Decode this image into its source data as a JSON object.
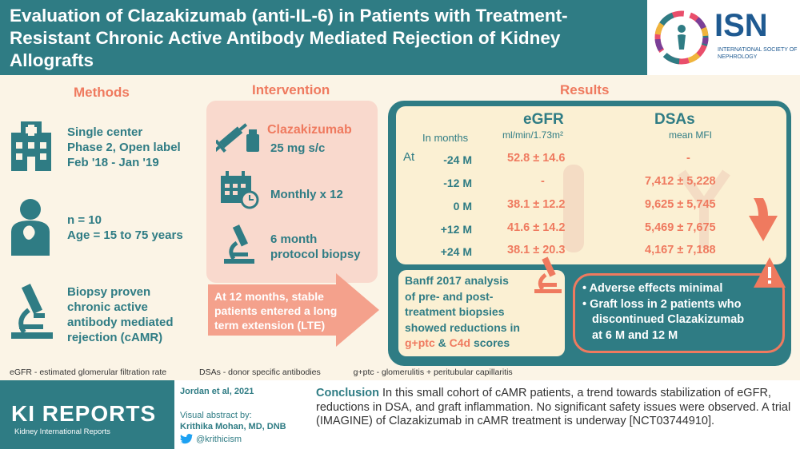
{
  "title": "Evaluation of Clazakizumab (anti-IL-6) in Patients with Treatment-Resistant Chronic Active Antibody Mediated Rejection of Kidney Allografts",
  "isn": {
    "name": "ISN",
    "sub": "INTERNATIONAL SOCIETY OF NEPHROLOGY"
  },
  "methods": {
    "title": "Methods",
    "items": [
      {
        "icon": "hospital-icon",
        "lines": [
          "Single center",
          "Phase 2, Open label",
          "Feb '18 - Jan '19"
        ]
      },
      {
        "icon": "patient-icon",
        "lines": [
          "n = 10",
          "Age = 15 to 75 years"
        ]
      },
      {
        "icon": "microscope-icon",
        "lines": [
          "Biopsy proven",
          "chronic active",
          "antibody mediated",
          "rejection (cAMR)"
        ]
      }
    ]
  },
  "intervention": {
    "title": "Intervention",
    "drug": "Clazakizumab",
    "dose": "25 mg s/c",
    "schedule": "Monthly x 12",
    "biopsy": [
      "6 month",
      "protocol biopsy"
    ],
    "arrow_text": "At 12 months, stable patients entered a long term extension (LTE)"
  },
  "results": {
    "title": "Results",
    "in_months": "In months",
    "at": "At",
    "egfr_title": "eGFR",
    "egfr_unit": "ml/min/1.73m²",
    "dsa_title": "DSAs",
    "dsa_unit": "mean MFI",
    "rows": [
      {
        "label": "-24 M",
        "egfr": "52.8 ± 14.6",
        "dsa": "-"
      },
      {
        "label": "-12 M",
        "egfr": "-",
        "dsa": "7,412 ± 5,228"
      },
      {
        "label": "0 M",
        "egfr": "38.1 ± 12.2",
        "dsa": "9,625 ± 5,745"
      },
      {
        "label": "+12 M",
        "egfr": "41.6 ± 14.2",
        "dsa": "5,469 ± 7,675"
      },
      {
        "label": "+24 M",
        "egfr": "38.1 ± 20.3",
        "dsa": "4,167 ± 7,188"
      }
    ],
    "banff": {
      "line1": "Banff 2017 analysis",
      "line2": "of pre- and post-",
      "line3": "treatment biopsies",
      "line4": "showed reductions in",
      "g": "g+ptc",
      "amp": " & ",
      "c4d": "C4d",
      "scores": " scores"
    },
    "adverse": [
      "Adverse effects minimal",
      "Graft loss in 2 patients who",
      "discontinued Clazakizumab",
      "at 6 M and 12 M"
    ]
  },
  "footnote": {
    "a": "eGFR - estimated glomerular filtration rate",
    "b": "DSAs - donor specific antibodies",
    "c": "g+ptc - glomerulitis + peritubular capillaritis"
  },
  "footer": {
    "brand": "KI REPORTS",
    "brand_sub": "Kidney International Reports",
    "citation": "Jordan et al, 2021",
    "va_label": "Visual abstract by:",
    "author": "Krithika Mohan, MD, DNB",
    "twitter": "@krithicism",
    "conclusion_label": "Conclusion",
    "conclusion": "In this small cohort of cAMR patients, a trend towards stabilization of eGFR, reductions in DSA, and graft inflammation. No significant safety issues were observed. A trial (IMAGINE) of Clazakizumab in cAMR treatment is underway [NCT03744910]."
  },
  "colors": {
    "teal": "#2f7c84",
    "coral": "#ef7a5f",
    "cream": "#fbf4e6",
    "pink": "#f9d9cd"
  }
}
